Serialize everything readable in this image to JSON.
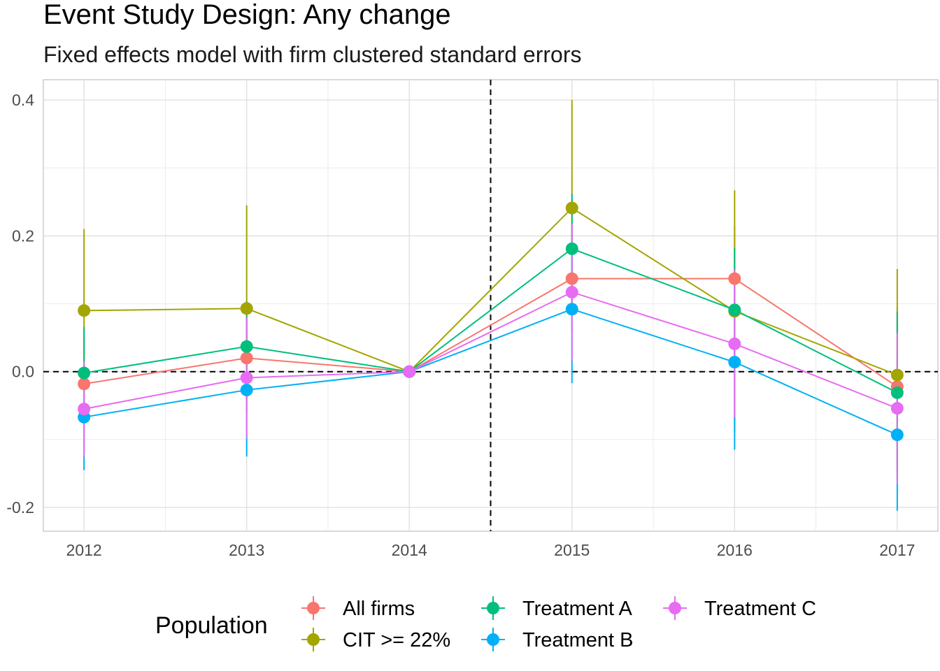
{
  "chart_data": {
    "type": "line",
    "title": "Event Study Design: Any change",
    "subtitle": "Fixed effects model with firm clustered standard errors",
    "x": [
      2012,
      2013,
      2014,
      2015,
      2016,
      2017
    ],
    "xlim": [
      2011.75,
      2017.25
    ],
    "ylim": [
      -0.235,
      0.43
    ],
    "y_ticks": [
      -0.2,
      0.0,
      0.2,
      0.4
    ],
    "y_tick_labels": [
      "-0.2",
      "0.0",
      "0.2",
      "0.4"
    ],
    "reference_lines": {
      "vertical_x": 2014.5,
      "horizontal_y": 0
    },
    "grid": true,
    "legend": {
      "title": "Population",
      "position": "bottom"
    },
    "series": [
      {
        "name": "All firms",
        "color": "#F8766D",
        "values": [
          -0.018,
          0.02,
          0.0,
          0.137,
          0.137,
          -0.022
        ],
        "ci_low": [
          -0.085,
          -0.04,
          0.0,
          0.06,
          0.06,
          -0.14
        ],
        "ci_high": [
          0.05,
          0.08,
          0.0,
          0.215,
          0.215,
          0.095
        ]
      },
      {
        "name": "CIT >= 22%",
        "color": "#A3A500",
        "values": [
          0.09,
          0.093,
          0.0,
          0.241,
          0.089,
          -0.005
        ],
        "ci_low": [
          -0.03,
          -0.06,
          0.0,
          0.082,
          -0.088,
          -0.16
        ],
        "ci_high": [
          0.21,
          0.245,
          0.0,
          0.4,
          0.267,
          0.151
        ]
      },
      {
        "name": "Treatment A",
        "color": "#00BF7D",
        "values": [
          -0.002,
          0.037,
          0.0,
          0.181,
          0.091,
          -0.031
        ],
        "ci_low": [
          -0.07,
          -0.03,
          0.0,
          0.1,
          0.0,
          -0.15
        ],
        "ci_high": [
          0.066,
          0.104,
          0.0,
          0.262,
          0.182,
          0.088
        ]
      },
      {
        "name": "Treatment B",
        "color": "#00B0F6",
        "values": [
          -0.067,
          -0.027,
          0.0,
          0.092,
          0.014,
          -0.093
        ],
        "ci_low": [
          -0.145,
          -0.125,
          0.0,
          -0.017,
          -0.115,
          -0.205
        ],
        "ci_high": [
          0.011,
          0.071,
          0.0,
          0.201,
          0.143,
          0.019
        ]
      },
      {
        "name": "Treatment C",
        "color": "#E76BF3",
        "values": [
          -0.055,
          -0.009,
          0.0,
          0.117,
          0.041,
          -0.054
        ],
        "ci_low": [
          -0.125,
          -0.098,
          0.0,
          0.016,
          -0.068,
          -0.165
        ],
        "ci_high": [
          0.015,
          0.08,
          0.0,
          0.218,
          0.15,
          0.057
        ]
      }
    ]
  }
}
